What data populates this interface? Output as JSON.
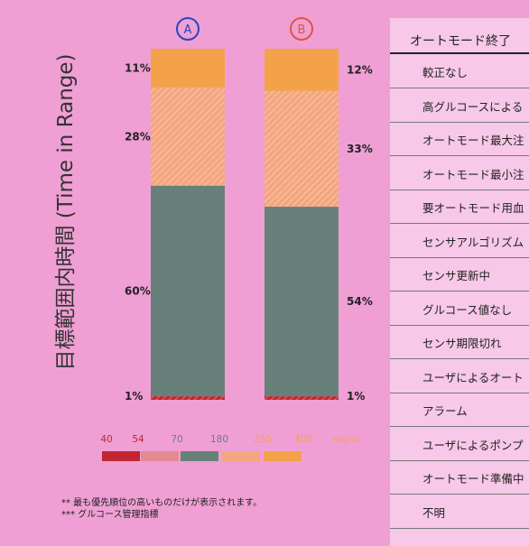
{
  "chart_data": {
    "type": "bar",
    "ylabel": "目標範囲内時間 (Time in Range)",
    "categories": [
      "A",
      "B"
    ],
    "category_colors": [
      "#2747c2",
      "#e2553f"
    ],
    "series": [
      {
        "name": "40-54",
        "color": "#c0262f",
        "values": [
          1,
          1
        ],
        "labels": [
          "1%",
          "1%"
        ]
      },
      {
        "name": "70-180",
        "color": "#68807a",
        "values": [
          60,
          54
        ],
        "labels": [
          "60%",
          "54%"
        ]
      },
      {
        "name": "180-250",
        "color": "#f5a67f",
        "values": [
          28,
          33
        ],
        "labels": [
          "28%",
          "33%"
        ]
      },
      {
        "name": "250-400",
        "color": "#f4a24a",
        "values": [
          11,
          12
        ],
        "labels": [
          "11%",
          "12%"
        ]
      }
    ],
    "ylim": [
      0,
      100
    ],
    "legend": {
      "ticks": [
        "40",
        "54",
        "70",
        "180",
        "250",
        "400"
      ],
      "tick_colors": [
        "#c0262f",
        "#c0262f",
        "#68807a",
        "#68807a",
        "#f4a24a",
        "#f4a24a"
      ],
      "unit": "mg/dL",
      "segment_colors": [
        "#c0262f",
        "#e58a90",
        "#68807a",
        "#f5a67f",
        "#f4a24a"
      ]
    }
  },
  "notes": [
    "** 最も優先順位の高いものだけが表示されます。",
    "*** グルコース管理指標"
  ],
  "sidebar": {
    "header": "オートモード終了",
    "items": [
      "較正なし",
      "高グルコースによる",
      "オートモード最大注",
      "オートモード最小注",
      "要オートモード用血",
      "センサアルゴリズム",
      "センサ更新中",
      "グルコース値なし",
      "センサ期限切れ",
      "ユーザによるオート",
      "アラーム",
      "ユーザによるポンプ",
      "オートモード準備中",
      "不明"
    ]
  }
}
